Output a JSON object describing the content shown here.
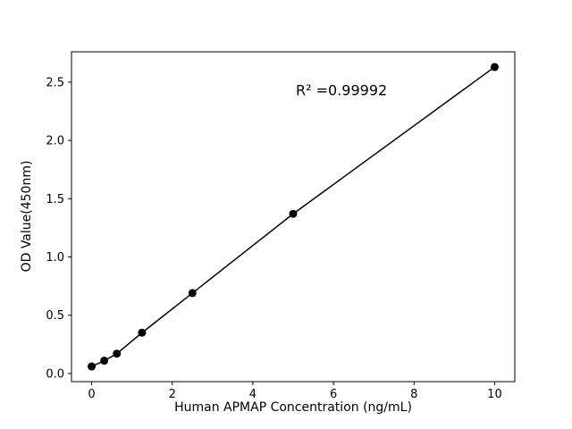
{
  "figure": {
    "background": "#ffffff"
  },
  "chart_data": {
    "type": "scatter",
    "title": "",
    "xlabel": "Human APMAP Concentration (ng/mL)",
    "ylabel": "OD Value(450nm)",
    "annotation": {
      "text": "R² =0.99992",
      "x": 6.2,
      "y": 2.43
    },
    "x": [
      0,
      0.3125,
      0.625,
      1.25,
      2.5,
      5,
      10
    ],
    "y": [
      0.06,
      0.11,
      0.17,
      0.35,
      0.69,
      1.37,
      2.63
    ],
    "line": true,
    "grid": false,
    "legend": null,
    "xlim": [
      -0.5,
      10.5
    ],
    "ylim": [
      -0.07,
      2.76
    ],
    "xticks": [
      "0",
      "2",
      "4",
      "6",
      "8",
      "10"
    ],
    "xtick_values": [
      0,
      2,
      4,
      6,
      8,
      10
    ],
    "yticks": [
      "0.0",
      "0.5",
      "1.0",
      "1.5",
      "2.0",
      "2.5"
    ],
    "ytick_values": [
      0.0,
      0.5,
      1.0,
      1.5,
      2.0,
      2.5
    ],
    "marker_color": "#000000",
    "line_color": "#000000",
    "axis_color": "#000000"
  }
}
